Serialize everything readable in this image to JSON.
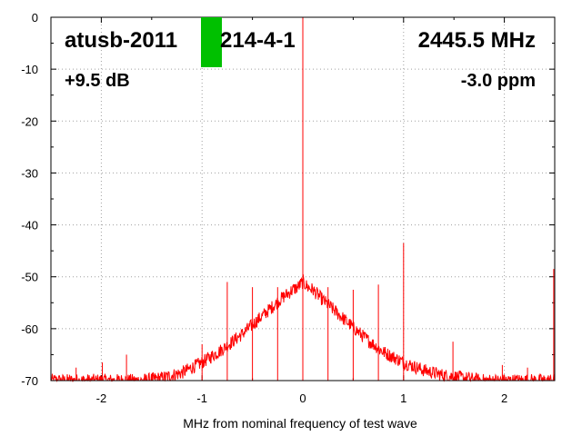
{
  "overlay": {
    "device_id": "atusb-2011",
    "device_suffix": "214-4-1",
    "frequency": "2445.5 MHz",
    "power": "+9.5 dB",
    "ppm": "-3.0 ppm",
    "status_color": "#00c000"
  },
  "chart_data": {
    "type": "line",
    "title": "",
    "xlabel": "MHz from nominal frequency of test wave",
    "ylabel": "",
    "xlim": [
      -2.5,
      2.5
    ],
    "ylim": [
      -70,
      0
    ],
    "x_ticks": [
      -2,
      -1,
      0,
      1,
      2
    ],
    "x_tick_labels": [
      "-2",
      "-1",
      "0",
      "1",
      "2"
    ],
    "y_ticks": [
      0,
      -10,
      -20,
      -30,
      -40,
      -50,
      -60,
      -70
    ],
    "y_tick_labels": [
      "0",
      "-10",
      "-20",
      "-30",
      "-40",
      "-50",
      "-60",
      "-70"
    ],
    "grid": true,
    "line_color": "#ff0000",
    "series": [
      {
        "x": [
          -2.5,
          -2.0,
          -1.6,
          -1.4,
          -1.2,
          -1.0,
          -0.8,
          -0.6,
          -0.4,
          -0.2,
          -0.1,
          -0.05,
          0.0,
          0.05,
          0.1,
          0.2,
          0.4,
          0.6,
          0.8,
          1.0,
          1.2,
          1.4,
          1.6,
          1.8,
          2.0,
          2.5
        ],
        "y": [
          -70,
          -70,
          -70,
          -69.5,
          -68.5,
          -66.5,
          -64,
          -61,
          -57.5,
          -54,
          -52.5,
          -52,
          -51,
          -52,
          -52.5,
          -54.5,
          -58,
          -61.5,
          -64.5,
          -66.5,
          -68,
          -69,
          -69.5,
          -70,
          -70,
          -70
        ]
      }
    ],
    "spurs": [
      {
        "x": -2.25,
        "y": -67.5
      },
      {
        "x": -1.99,
        "y": -66.5
      },
      {
        "x": -1.75,
        "y": -65
      },
      {
        "x": -1.57,
        "y": -69
      },
      {
        "x": -1.49,
        "y": -68.5
      },
      {
        "x": -1.49,
        "y": -68.5
      },
      {
        "x": -1.0,
        "y": -63
      },
      {
        "x": -0.75,
        "y": -51
      },
      {
        "x": -0.5,
        "y": -52
      },
      {
        "x": -0.25,
        "y": -52
      },
      {
        "x": 0.0,
        "y": 0
      },
      {
        "x": 0.25,
        "y": -52
      },
      {
        "x": 0.5,
        "y": -52.5
      },
      {
        "x": 0.75,
        "y": -51.5
      },
      {
        "x": 1.0,
        "y": -43.5
      },
      {
        "x": 1.49,
        "y": -62.5
      },
      {
        "x": 1.98,
        "y": -67
      },
      {
        "x": 2.23,
        "y": -67.5
      },
      {
        "x": 2.49,
        "y": -48.5
      }
    ]
  }
}
